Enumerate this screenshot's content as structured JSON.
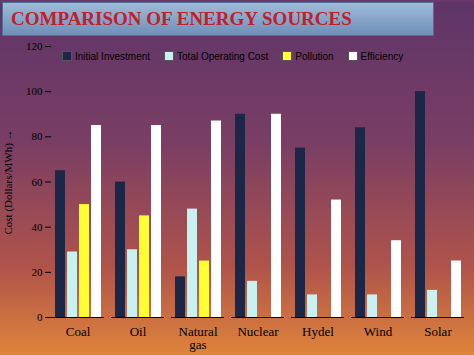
{
  "chart_data": {
    "type": "bar",
    "title": "COMPARISON OF ENERGY SOURCES",
    "y_label": "Cost (Dollars/MWh) →",
    "categories": [
      "Coal",
      "Oil",
      "Natural gas",
      "Nuclear",
      "Hydel",
      "Wind",
      "Solar"
    ],
    "series": [
      {
        "name": "Initial Investment",
        "color": "#1c2748",
        "values": [
          65,
          60,
          18,
          90,
          75,
          84,
          100
        ]
      },
      {
        "name": "Total Operating Cost",
        "color": "#c8f2f2",
        "values": [
          29,
          30,
          48,
          16,
          10,
          10,
          12
        ]
      },
      {
        "name": "Pollution",
        "color": "#ffff33",
        "values": [
          50,
          45,
          25,
          null,
          null,
          null,
          null
        ]
      },
      {
        "name": "Efficiency",
        "color": "#ffffff",
        "values": [
          85,
          85,
          87,
          90,
          52,
          34,
          25
        ]
      }
    ],
    "ylim": [
      0,
      120
    ],
    "yticks": [
      0,
      20,
      40,
      60,
      80,
      100,
      120
    ],
    "grid": false,
    "legend": "top"
  }
}
